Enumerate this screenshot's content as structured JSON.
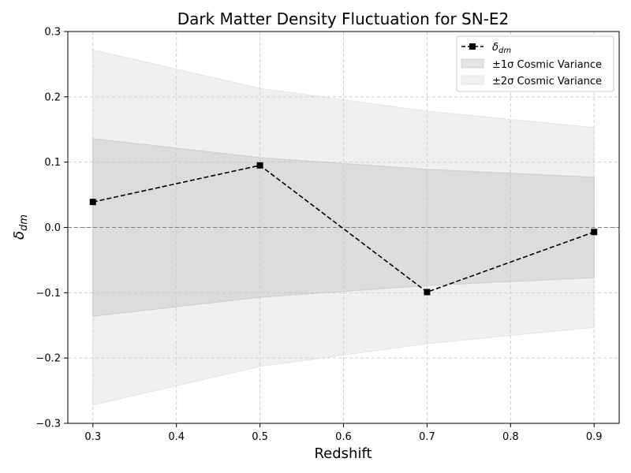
{
  "chart_data": {
    "type": "line",
    "title": "Dark Matter Density Fluctuation for SN-E2",
    "xlabel": "Redshift",
    "ylabel_main": "δ",
    "ylabel_sub": "dm",
    "xlim": [
      0.27,
      0.93
    ],
    "ylim": [
      -0.3,
      0.3
    ],
    "x_ticks": [
      0.3,
      0.4,
      0.5,
      0.6,
      0.7,
      0.8,
      0.9
    ],
    "x_tick_labels": [
      "0.3",
      "0.4",
      "0.5",
      "0.6",
      "0.7",
      "0.8",
      "0.9"
    ],
    "y_ticks": [
      -0.3,
      -0.2,
      -0.1,
      0.0,
      0.1,
      0.2,
      0.3
    ],
    "y_tick_labels": [
      "−0.3",
      "−0.2",
      "−0.1",
      "0.0",
      "0.1",
      "0.2",
      "0.3"
    ],
    "grid": true,
    "legend_position": "top-right",
    "reference_line_y": 0.0,
    "x": [
      0.3,
      0.5,
      0.7,
      0.9
    ],
    "series": [
      {
        "name_main": "δ",
        "name_sub": "dm",
        "values": [
          0.039,
          0.095,
          -0.099,
          -0.007
        ],
        "color": "#000000",
        "style": "dashed",
        "marker": "square"
      }
    ],
    "bands": [
      {
        "name": "±2σ Cosmic Variance",
        "upper": [
          0.272,
          0.213,
          0.178,
          0.153
        ],
        "lower": [
          -0.272,
          -0.213,
          -0.178,
          -0.153
        ],
        "color": "#d9d9d9",
        "opacity": 0.4
      },
      {
        "name": "±1σ Cosmic Variance",
        "upper": [
          0.136,
          0.107,
          0.089,
          0.077
        ],
        "lower": [
          -0.136,
          -0.107,
          -0.089,
          -0.077
        ],
        "color": "#bfbfbf",
        "opacity": 0.4
      }
    ],
    "legend_order": [
      "series",
      "±1σ Cosmic Variance",
      "±2σ Cosmic Variance"
    ]
  }
}
